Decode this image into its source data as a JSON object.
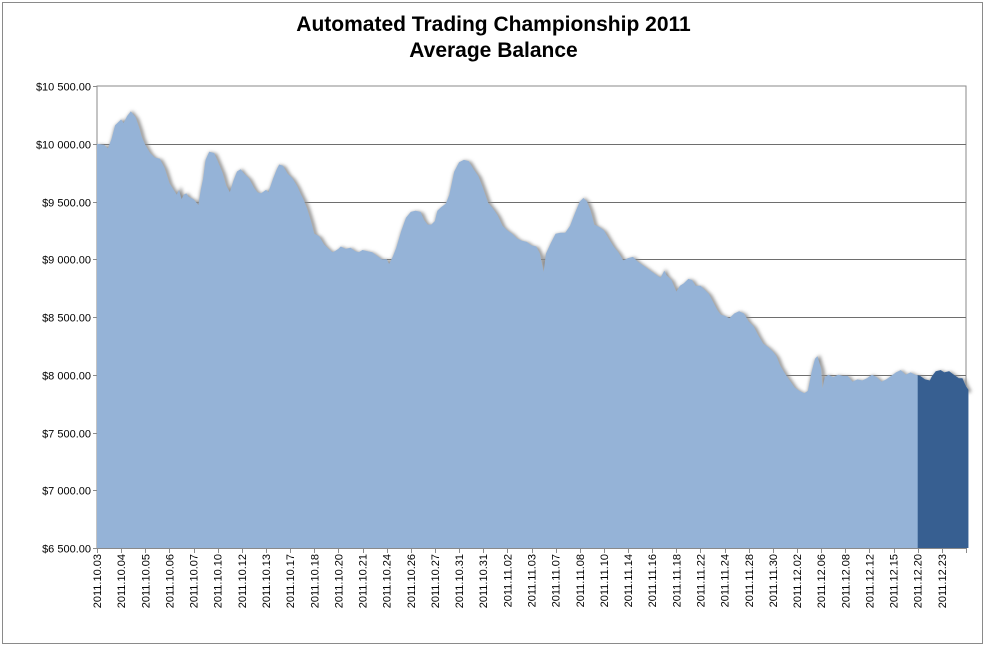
{
  "chart_data": {
    "type": "area",
    "title": "Automated Trading Championship 2011",
    "subtitle": "Average Balance",
    "xlabel": "",
    "ylabel": "",
    "ylim": [
      6500,
      10500
    ],
    "y_ticks": [
      {
        "value": 6500,
        "label": "$6 500.00"
      },
      {
        "value": 7000,
        "label": "$7 000.00"
      },
      {
        "value": 7500,
        "label": "$7 500.00"
      },
      {
        "value": 8000,
        "label": "$8 000.00"
      },
      {
        "value": 8500,
        "label": "$8 500.00"
      },
      {
        "value": 9000,
        "label": "$9 000.00"
      },
      {
        "value": 9500,
        "label": "$9 500.00"
      },
      {
        "value": 10000,
        "label": "$10 000.00"
      },
      {
        "value": 10500,
        "label": "$10 500.00"
      }
    ],
    "categories": [
      "2011.10.03",
      "2011.10.04",
      "2011.10.05",
      "2011.10.06",
      "2011.10.07",
      "2011.10.10",
      "2011.10.12",
      "2011.10.13",
      "2011.10.17",
      "2011.10.18",
      "2011.10.20",
      "2011.10.21",
      "2011.10.24",
      "2011.10.26",
      "2011.10.27",
      "2011.10.31",
      "2011.10.31",
      "2011.11.02",
      "2011.11.03",
      "2011.11.07",
      "2011.11.08",
      "2011.11.10",
      "2011.11.14",
      "2011.11.16",
      "2011.11.18",
      "2011.11.22",
      "2011.11.24",
      "2011.11.28",
      "2011.11.30",
      "2011.12.02",
      "2011.12.06",
      "2011.12.08",
      "2011.12.12",
      "2011.12.15",
      "2011.12.20",
      "2011.12.23"
    ],
    "grid": true,
    "legend": "none",
    "colors": {
      "area": "#95b3d7",
      "highlight": "#375f91",
      "shadow": "#8c8c8c"
    },
    "highlight_from_index": 34,
    "series": [
      {
        "values": [
          [
            0,
            10000
          ],
          [
            0.3,
            9990
          ],
          [
            0.45,
            9960
          ],
          [
            0.6,
            10040
          ],
          [
            0.75,
            10160
          ],
          [
            1.0,
            10210
          ],
          [
            1.1,
            10180
          ],
          [
            1.25,
            10240
          ],
          [
            1.4,
            10280
          ],
          [
            1.6,
            10230
          ],
          [
            1.75,
            10140
          ],
          [
            1.85,
            10060
          ],
          [
            2.0,
            9990
          ],
          [
            2.2,
            9920
          ],
          [
            2.4,
            9880
          ],
          [
            2.6,
            9870
          ],
          [
            2.8,
            9790
          ],
          [
            3.0,
            9660
          ],
          [
            3.15,
            9610
          ],
          [
            3.3,
            9560
          ],
          [
            3.4,
            9600
          ],
          [
            3.5,
            9520
          ],
          [
            3.6,
            9560
          ],
          [
            3.7,
            9570
          ],
          [
            3.8,
            9540
          ],
          [
            4.0,
            9520
          ],
          [
            4.2,
            9470
          ],
          [
            4.3,
            9600
          ],
          [
            4.4,
            9700
          ],
          [
            4.5,
            9860
          ],
          [
            4.65,
            9930
          ],
          [
            4.85,
            9920
          ],
          [
            5.0,
            9850
          ],
          [
            5.2,
            9750
          ],
          [
            5.35,
            9640
          ],
          [
            5.5,
            9580
          ],
          [
            5.65,
            9680
          ],
          [
            5.8,
            9760
          ],
          [
            5.95,
            9780
          ],
          [
            6.1,
            9740
          ],
          [
            6.3,
            9700
          ],
          [
            6.5,
            9620
          ],
          [
            6.65,
            9580
          ],
          [
            6.8,
            9570
          ],
          [
            7.0,
            9600
          ],
          [
            7.1,
            9580
          ],
          [
            7.3,
            9700
          ],
          [
            7.45,
            9780
          ],
          [
            7.55,
            9820
          ],
          [
            7.7,
            9810
          ],
          [
            7.9,
            9740
          ],
          [
            8.1,
            9700
          ],
          [
            8.3,
            9630
          ],
          [
            8.45,
            9560
          ],
          [
            8.55,
            9520
          ],
          [
            8.7,
            9440
          ],
          [
            8.85,
            9340
          ],
          [
            9.0,
            9220
          ],
          [
            9.2,
            9200
          ],
          [
            9.4,
            9130
          ],
          [
            9.6,
            9090
          ],
          [
            9.75,
            9060
          ],
          [
            9.85,
            9070
          ],
          [
            10.0,
            9090
          ],
          [
            10.1,
            9110
          ],
          [
            10.3,
            9090
          ],
          [
            10.5,
            9100
          ],
          [
            10.7,
            9070
          ],
          [
            10.85,
            9060
          ],
          [
            11.0,
            9080
          ],
          [
            11.2,
            9070
          ],
          [
            11.4,
            9060
          ],
          [
            11.6,
            9030
          ],
          [
            11.8,
            9000
          ],
          [
            12.0,
            9000
          ],
          [
            12.1,
            8960
          ],
          [
            12.25,
            9020
          ],
          [
            12.4,
            9100
          ],
          [
            12.6,
            9240
          ],
          [
            12.8,
            9360
          ],
          [
            13.0,
            9410
          ],
          [
            13.2,
            9420
          ],
          [
            13.4,
            9410
          ],
          [
            13.55,
            9340
          ],
          [
            13.7,
            9300
          ],
          [
            13.85,
            9300
          ],
          [
            14.0,
            9330
          ],
          [
            14.1,
            9420
          ],
          [
            14.25,
            9450
          ],
          [
            14.45,
            9480
          ],
          [
            14.6,
            9560
          ],
          [
            14.8,
            9760
          ],
          [
            15.0,
            9840
          ],
          [
            15.2,
            9860
          ],
          [
            15.4,
            9850
          ],
          [
            15.6,
            9780
          ],
          [
            15.8,
            9720
          ],
          [
            16.0,
            9610
          ],
          [
            16.2,
            9490
          ],
          [
            16.4,
            9440
          ],
          [
            16.6,
            9380
          ],
          [
            16.8,
            9290
          ],
          [
            17.0,
            9250
          ],
          [
            17.2,
            9220
          ],
          [
            17.4,
            9180
          ],
          [
            17.6,
            9160
          ],
          [
            17.8,
            9150
          ],
          [
            18.0,
            9120
          ],
          [
            18.2,
            9110
          ],
          [
            18.35,
            9050
          ],
          [
            18.5,
            8890
          ],
          [
            18.6,
            9050
          ],
          [
            18.8,
            9140
          ],
          [
            19.0,
            9220
          ],
          [
            19.2,
            9230
          ],
          [
            19.4,
            9230
          ],
          [
            19.6,
            9290
          ],
          [
            19.8,
            9400
          ],
          [
            20.0,
            9500
          ],
          [
            20.15,
            9530
          ],
          [
            20.3,
            9500
          ],
          [
            20.45,
            9420
          ],
          [
            20.6,
            9300
          ],
          [
            20.8,
            9280
          ],
          [
            21.0,
            9250
          ],
          [
            21.2,
            9180
          ],
          [
            21.4,
            9110
          ],
          [
            21.6,
            9060
          ],
          [
            21.8,
            8990
          ],
          [
            22.0,
            9010
          ],
          [
            22.2,
            9020
          ],
          [
            22.4,
            8980
          ],
          [
            22.6,
            8950
          ],
          [
            22.8,
            8920
          ],
          [
            23.0,
            8890
          ],
          [
            23.2,
            8860
          ],
          [
            23.35,
            8840
          ],
          [
            23.5,
            8900
          ],
          [
            23.6,
            8860
          ],
          [
            23.8,
            8820
          ],
          [
            24.0,
            8720
          ],
          [
            24.15,
            8770
          ],
          [
            24.3,
            8790
          ],
          [
            24.5,
            8830
          ],
          [
            24.65,
            8820
          ],
          [
            24.8,
            8770
          ],
          [
            25.0,
            8770
          ],
          [
            25.2,
            8730
          ],
          [
            25.35,
            8700
          ],
          [
            25.5,
            8640
          ],
          [
            25.7,
            8560
          ],
          [
            25.85,
            8520
          ],
          [
            26.0,
            8510
          ],
          [
            26.2,
            8490
          ],
          [
            26.4,
            8530
          ],
          [
            26.6,
            8550
          ],
          [
            26.8,
            8530
          ],
          [
            27.0,
            8460
          ],
          [
            27.2,
            8420
          ],
          [
            27.4,
            8340
          ],
          [
            27.6,
            8270
          ],
          [
            27.8,
            8240
          ],
          [
            28.0,
            8200
          ],
          [
            28.15,
            8160
          ],
          [
            28.3,
            8080
          ],
          [
            28.5,
            8010
          ],
          [
            28.7,
            7950
          ],
          [
            28.9,
            7890
          ],
          [
            29.1,
            7860
          ],
          [
            29.3,
            7840
          ],
          [
            29.45,
            7860
          ],
          [
            29.6,
            8020
          ],
          [
            29.75,
            8140
          ],
          [
            29.85,
            8160
          ],
          [
            30.0,
            8050
          ],
          [
            30.05,
            7880
          ],
          [
            30.15,
            7980
          ],
          [
            30.3,
            8000
          ],
          [
            30.5,
            7980
          ],
          [
            30.7,
            8000
          ],
          [
            30.9,
            7990
          ],
          [
            31.1,
            7990
          ],
          [
            31.3,
            7940
          ],
          [
            31.5,
            7960
          ],
          [
            31.7,
            7950
          ],
          [
            31.9,
            7970
          ],
          [
            32.1,
            8000
          ],
          [
            32.3,
            7980
          ],
          [
            32.5,
            7940
          ],
          [
            32.7,
            7960
          ],
          [
            32.9,
            7990
          ],
          [
            33.1,
            8020
          ],
          [
            33.3,
            8040
          ],
          [
            33.5,
            8000
          ],
          [
            33.7,
            8020
          ],
          [
            33.9,
            8000
          ],
          [
            34.1,
            7990
          ],
          [
            34.3,
            7960
          ],
          [
            34.5,
            7950
          ],
          [
            34.6,
            7990
          ],
          [
            34.75,
            8030
          ],
          [
            34.95,
            8040
          ],
          [
            35.1,
            8020
          ],
          [
            35.3,
            8030
          ],
          [
            35.5,
            8000
          ],
          [
            35.7,
            7970
          ],
          [
            35.85,
            7970
          ],
          [
            36.0,
            7900
          ],
          [
            36.1,
            7870
          ]
        ]
      }
    ]
  }
}
